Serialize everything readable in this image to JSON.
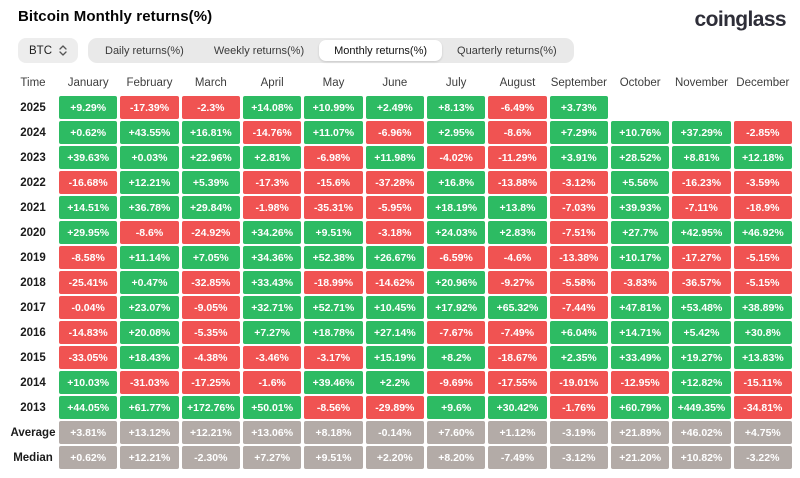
{
  "title": "Bitcoin Monthly returns(%)",
  "brand": "coinglass",
  "controls": {
    "symbol": "BTC",
    "tabs": [
      {
        "label": "Daily returns(%)",
        "active": false
      },
      {
        "label": "Weekly returns(%)",
        "active": false
      },
      {
        "label": "Monthly returns(%)",
        "active": true
      },
      {
        "label": "Quarterly returns(%)",
        "active": false
      }
    ]
  },
  "colors": {
    "positive": "#2dbb63",
    "negative": "#f05352",
    "neutral": "#b3aba7"
  },
  "chart_data": {
    "type": "heatmap",
    "columns": [
      "Time",
      "January",
      "February",
      "March",
      "April",
      "May",
      "June",
      "July",
      "August",
      "September",
      "October",
      "November",
      "December"
    ],
    "rows": [
      {
        "label": "2025",
        "neutral": false,
        "values": [
          "+9.29%",
          "-17.39%",
          "-2.3%",
          "+14.08%",
          "+10.99%",
          "+2.49%",
          "+8.13%",
          "-6.49%",
          "+3.73%",
          "",
          "",
          ""
        ]
      },
      {
        "label": "2024",
        "neutral": false,
        "values": [
          "+0.62%",
          "+43.55%",
          "+16.81%",
          "-14.76%",
          "+11.07%",
          "-6.96%",
          "+2.95%",
          "-8.6%",
          "+7.29%",
          "+10.76%",
          "+37.29%",
          "-2.85%"
        ]
      },
      {
        "label": "2023",
        "neutral": false,
        "values": [
          "+39.63%",
          "+0.03%",
          "+22.96%",
          "+2.81%",
          "-6.98%",
          "+11.98%",
          "-4.02%",
          "-11.29%",
          "+3.91%",
          "+28.52%",
          "+8.81%",
          "+12.18%"
        ]
      },
      {
        "label": "2022",
        "neutral": false,
        "values": [
          "-16.68%",
          "+12.21%",
          "+5.39%",
          "-17.3%",
          "-15.6%",
          "-37.28%",
          "+16.8%",
          "-13.88%",
          "-3.12%",
          "+5.56%",
          "-16.23%",
          "-3.59%"
        ]
      },
      {
        "label": "2021",
        "neutral": false,
        "values": [
          "+14.51%",
          "+36.78%",
          "+29.84%",
          "-1.98%",
          "-35.31%",
          "-5.95%",
          "+18.19%",
          "+13.8%",
          "-7.03%",
          "+39.93%",
          "-7.11%",
          "-18.9%"
        ]
      },
      {
        "label": "2020",
        "neutral": false,
        "values": [
          "+29.95%",
          "-8.6%",
          "-24.92%",
          "+34.26%",
          "+9.51%",
          "-3.18%",
          "+24.03%",
          "+2.83%",
          "-7.51%",
          "+27.7%",
          "+42.95%",
          "+46.92%"
        ]
      },
      {
        "label": "2019",
        "neutral": false,
        "values": [
          "-8.58%",
          "+11.14%",
          "+7.05%",
          "+34.36%",
          "+52.38%",
          "+26.67%",
          "-6.59%",
          "-4.6%",
          "-13.38%",
          "+10.17%",
          "-17.27%",
          "-5.15%"
        ]
      },
      {
        "label": "2018",
        "neutral": false,
        "values": [
          "-25.41%",
          "+0.47%",
          "-32.85%",
          "+33.43%",
          "-18.99%",
          "-14.62%",
          "+20.96%",
          "-9.27%",
          "-5.58%",
          "-3.83%",
          "-36.57%",
          "-5.15%"
        ]
      },
      {
        "label": "2017",
        "neutral": false,
        "values": [
          "-0.04%",
          "+23.07%",
          "-9.05%",
          "+32.71%",
          "+52.71%",
          "+10.45%",
          "+17.92%",
          "+65.32%",
          "-7.44%",
          "+47.81%",
          "+53.48%",
          "+38.89%"
        ]
      },
      {
        "label": "2016",
        "neutral": false,
        "values": [
          "-14.83%",
          "+20.08%",
          "-5.35%",
          "+7.27%",
          "+18.78%",
          "+27.14%",
          "-7.67%",
          "-7.49%",
          "+6.04%",
          "+14.71%",
          "+5.42%",
          "+30.8%"
        ]
      },
      {
        "label": "2015",
        "neutral": false,
        "values": [
          "-33.05%",
          "+18.43%",
          "-4.38%",
          "-3.46%",
          "-3.17%",
          "+15.19%",
          "+8.2%",
          "-18.67%",
          "+2.35%",
          "+33.49%",
          "+19.27%",
          "+13.83%"
        ]
      },
      {
        "label": "2014",
        "neutral": false,
        "values": [
          "+10.03%",
          "-31.03%",
          "-17.25%",
          "-1.6%",
          "+39.46%",
          "+2.2%",
          "-9.69%",
          "-17.55%",
          "-19.01%",
          "-12.95%",
          "+12.82%",
          "-15.11%"
        ]
      },
      {
        "label": "2013",
        "neutral": false,
        "values": [
          "+44.05%",
          "+61.77%",
          "+172.76%",
          "+50.01%",
          "-8.56%",
          "-29.89%",
          "+9.6%",
          "+30.42%",
          "-1.76%",
          "+60.79%",
          "+449.35%",
          "-34.81%"
        ]
      },
      {
        "label": "Average",
        "neutral": true,
        "values": [
          "+3.81%",
          "+13.12%",
          "+12.21%",
          "+13.06%",
          "+8.18%",
          "-0.14%",
          "+7.60%",
          "+1.12%",
          "-3.19%",
          "+21.89%",
          "+46.02%",
          "+4.75%"
        ]
      },
      {
        "label": "Median",
        "neutral": true,
        "values": [
          "+0.62%",
          "+12.21%",
          "-2.30%",
          "+7.27%",
          "+9.51%",
          "+2.20%",
          "+8.20%",
          "-7.49%",
          "-3.12%",
          "+21.20%",
          "+10.82%",
          "-3.22%"
        ]
      }
    ]
  }
}
